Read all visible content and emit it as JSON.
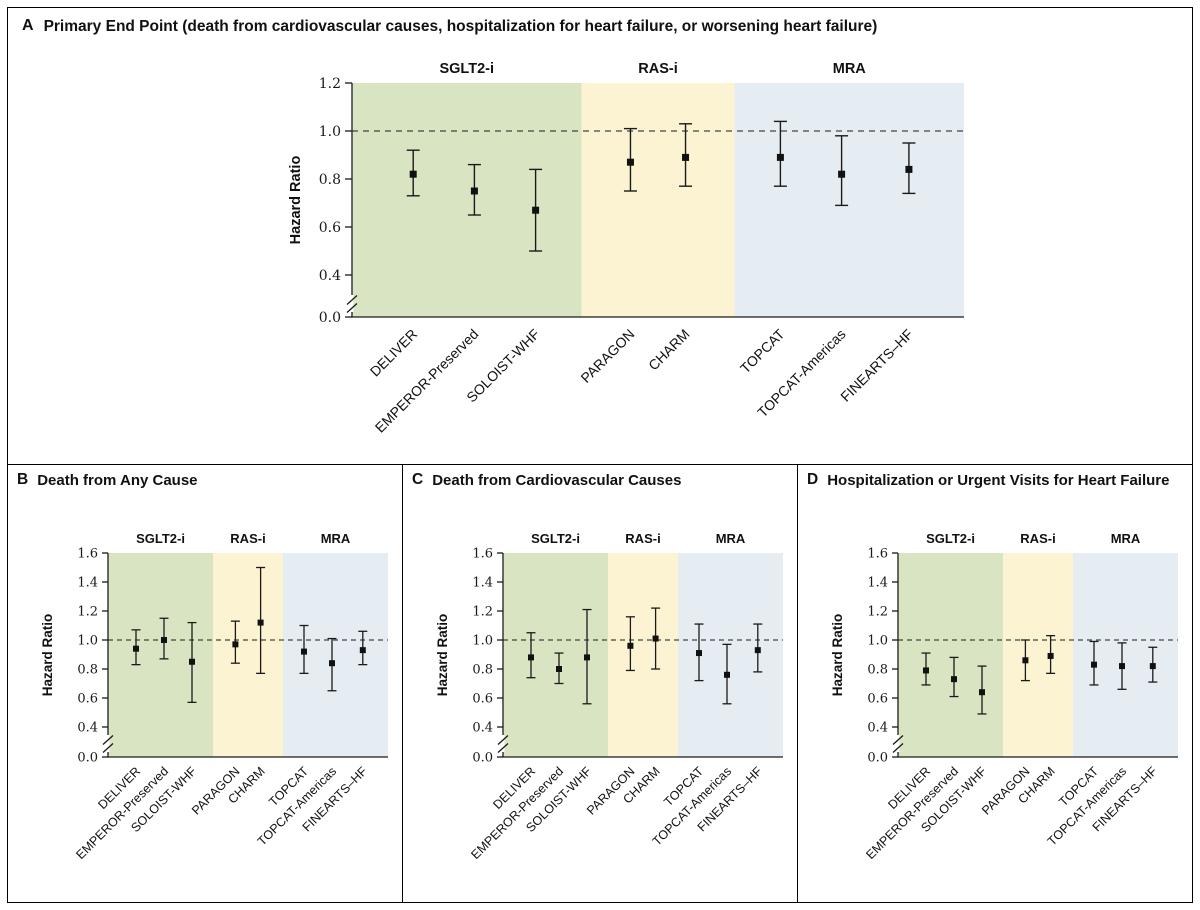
{
  "chart_data": [
    {
      "id": "A",
      "type": "forest",
      "title": "Primary End Point (death from cardiovascular causes, hospitalization for heart failure, or worsening heart failure)",
      "ylabel": "Hazard Ratio",
      "yticks": [
        0.0,
        0.4,
        0.6,
        0.8,
        1.0,
        1.2
      ],
      "ymax": 1.2,
      "ylim": [
        0.0,
        1.2
      ],
      "reference_line": 1.0,
      "axis_break_between": [
        0.0,
        0.4
      ],
      "groups": [
        {
          "label": "SGLT2-i",
          "color": "#d9e5c2",
          "trials": [
            {
              "name": "DELIVER",
              "hr": 0.82,
              "ci_low": 0.73,
              "ci_high": 0.92
            },
            {
              "name": "EMPEROR-Preserved",
              "hr": 0.75,
              "ci_low": 0.65,
              "ci_high": 0.86
            },
            {
              "name": "SOLOIST-WHF",
              "hr": 0.67,
              "ci_low": 0.5,
              "ci_high": 0.84
            }
          ]
        },
        {
          "label": "RAS-i",
          "color": "#fbf3d2",
          "trials": [
            {
              "name": "PARAGON",
              "hr": 0.87,
              "ci_low": 0.75,
              "ci_high": 1.01
            },
            {
              "name": "CHARM",
              "hr": 0.89,
              "ci_low": 0.77,
              "ci_high": 1.03
            }
          ]
        },
        {
          "label": "MRA",
          "color": "#e6edf2",
          "trials": [
            {
              "name": "TOPCAT",
              "hr": 0.89,
              "ci_low": 0.77,
              "ci_high": 1.04
            },
            {
              "name": "TOPCAT-Americas",
              "hr": 0.82,
              "ci_low": 0.69,
              "ci_high": 0.98
            },
            {
              "name": "FINEARTS–HF",
              "hr": 0.84,
              "ci_low": 0.74,
              "ci_high": 0.95
            }
          ]
        }
      ]
    },
    {
      "id": "B",
      "type": "forest",
      "title": "Death from Any Cause",
      "ylabel": "Hazard Ratio",
      "yticks": [
        0.0,
        0.4,
        0.6,
        0.8,
        1.0,
        1.2,
        1.4,
        1.6
      ],
      "ymax": 1.6,
      "ylim": [
        0.0,
        1.6
      ],
      "reference_line": 1.0,
      "axis_break_between": [
        0.0,
        0.4
      ],
      "groups": [
        {
          "label": "SGLT2-i",
          "color": "#d9e5c2",
          "trials": [
            {
              "name": "DELIVER",
              "hr": 0.94,
              "ci_low": 0.83,
              "ci_high": 1.07
            },
            {
              "name": "EMPEROR-Preserved",
              "hr": 1.0,
              "ci_low": 0.87,
              "ci_high": 1.15
            },
            {
              "name": "SOLOIST-WHF",
              "hr": 0.85,
              "ci_low": 0.57,
              "ci_high": 1.12
            }
          ]
        },
        {
          "label": "RAS-i",
          "color": "#fbf3d2",
          "trials": [
            {
              "name": "PARAGON",
              "hr": 0.97,
              "ci_low": 0.84,
              "ci_high": 1.13
            },
            {
              "name": "CHARM",
              "hr": 1.12,
              "ci_low": 0.77,
              "ci_high": 1.5
            }
          ]
        },
        {
          "label": "MRA",
          "color": "#e6edf2",
          "trials": [
            {
              "name": "TOPCAT",
              "hr": 0.92,
              "ci_low": 0.77,
              "ci_high": 1.1
            },
            {
              "name": "TOPCAT-Americas",
              "hr": 0.84,
              "ci_low": 0.65,
              "ci_high": 1.01
            },
            {
              "name": "FINEARTS–HF",
              "hr": 0.93,
              "ci_low": 0.83,
              "ci_high": 1.06
            }
          ]
        }
      ]
    },
    {
      "id": "C",
      "type": "forest",
      "title": "Death from Cardiovascular Causes",
      "ylabel": "Hazard Ratio",
      "yticks": [
        0.0,
        0.4,
        0.6,
        0.8,
        1.0,
        1.2,
        1.4,
        1.6
      ],
      "ymax": 1.6,
      "ylim": [
        0.0,
        1.6
      ],
      "reference_line": 1.0,
      "axis_break_between": [
        0.0,
        0.4
      ],
      "groups": [
        {
          "label": "SGLT2-i",
          "color": "#d9e5c2",
          "trials": [
            {
              "name": "DELIVER",
              "hr": 0.88,
              "ci_low": 0.74,
              "ci_high": 1.05
            },
            {
              "name": "EMPEROR-Preserved",
              "hr": 0.8,
              "ci_low": 0.7,
              "ci_high": 0.91
            },
            {
              "name": "SOLOIST-WHF",
              "hr": 0.88,
              "ci_low": 0.56,
              "ci_high": 1.21
            }
          ]
        },
        {
          "label": "RAS-i",
          "color": "#fbf3d2",
          "trials": [
            {
              "name": "PARAGON",
              "hr": 0.96,
              "ci_low": 0.79,
              "ci_high": 1.16
            },
            {
              "name": "CHARM",
              "hr": 1.01,
              "ci_low": 0.8,
              "ci_high": 1.22
            }
          ]
        },
        {
          "label": "MRA",
          "color": "#e6edf2",
          "trials": [
            {
              "name": "TOPCAT",
              "hr": 0.91,
              "ci_low": 0.72,
              "ci_high": 1.11
            },
            {
              "name": "TOPCAT-Americas",
              "hr": 0.76,
              "ci_low": 0.56,
              "ci_high": 0.97
            },
            {
              "name": "FINEARTS–HF",
              "hr": 0.93,
              "ci_low": 0.78,
              "ci_high": 1.11
            }
          ]
        }
      ]
    },
    {
      "id": "D",
      "type": "forest",
      "title": "Hospitalization or Urgent Visits for Heart Failure",
      "ylabel": "Hazard Ratio",
      "yticks": [
        0.0,
        0.4,
        0.6,
        0.8,
        1.0,
        1.2,
        1.4,
        1.6
      ],
      "ymax": 1.6,
      "ylim": [
        0.0,
        1.6
      ],
      "reference_line": 1.0,
      "axis_break_between": [
        0.0,
        0.4
      ],
      "groups": [
        {
          "label": "SGLT2-i",
          "color": "#d9e5c2",
          "trials": [
            {
              "name": "DELIVER",
              "hr": 0.79,
              "ci_low": 0.69,
              "ci_high": 0.91
            },
            {
              "name": "EMPEROR-Preserved",
              "hr": 0.73,
              "ci_low": 0.61,
              "ci_high": 0.88
            },
            {
              "name": "SOLOIST-WHF",
              "hr": 0.64,
              "ci_low": 0.49,
              "ci_high": 0.82
            }
          ]
        },
        {
          "label": "RAS-i",
          "color": "#fbf3d2",
          "trials": [
            {
              "name": "PARAGON",
              "hr": 0.86,
              "ci_low": 0.72,
              "ci_high": 1.0
            },
            {
              "name": "CHARM",
              "hr": 0.89,
              "ci_low": 0.77,
              "ci_high": 1.03
            }
          ]
        },
        {
          "label": "MRA",
          "color": "#e6edf2",
          "trials": [
            {
              "name": "TOPCAT",
              "hr": 0.83,
              "ci_low": 0.69,
              "ci_high": 0.99
            },
            {
              "name": "TOPCAT-Americas",
              "hr": 0.82,
              "ci_low": 0.66,
              "ci_high": 0.98
            },
            {
              "name": "FINEARTS–HF",
              "hr": 0.82,
              "ci_low": 0.71,
              "ci_high": 0.95
            }
          ]
        }
      ]
    }
  ]
}
